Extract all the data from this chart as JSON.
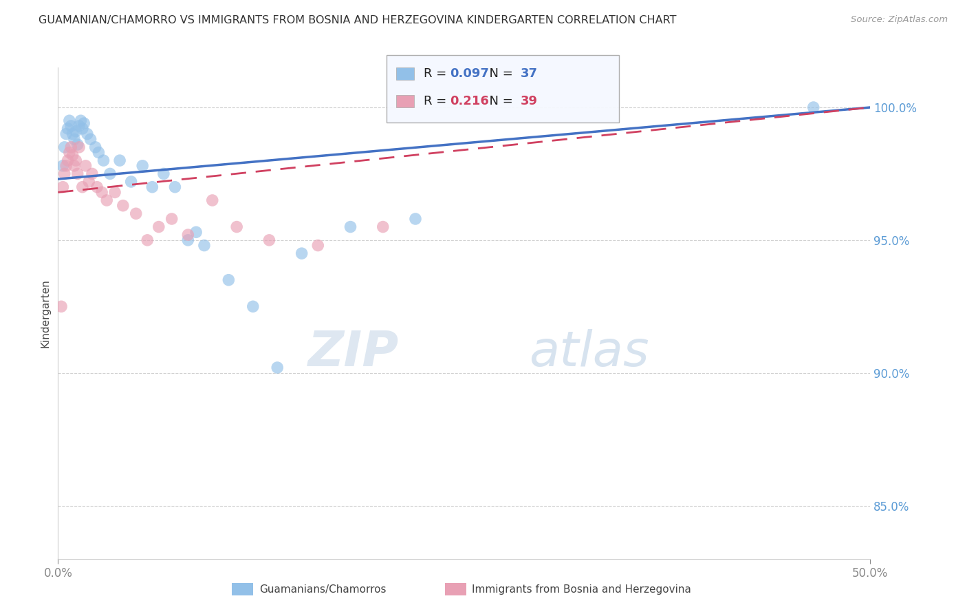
{
  "title": "GUAMANIAN/CHAMORRO VS IMMIGRANTS FROM BOSNIA AND HERZEGOVINA KINDERGARTEN CORRELATION CHART",
  "source": "Source: ZipAtlas.com",
  "ylabel": "Kindergarten",
  "x_lim": [
    0.0,
    50.0
  ],
  "y_lim": [
    83.0,
    101.5
  ],
  "blue_R": 0.097,
  "blue_N": 37,
  "pink_R": 0.216,
  "pink_N": 39,
  "blue_color": "#92C0E8",
  "pink_color": "#E8A0B4",
  "blue_line_color": "#4472C4",
  "pink_line_color": "#D04060",
  "legend_label_blue": "Guamanians/Chamorros",
  "legend_label_pink": "Immigrants from Bosnia and Herzegovina",
  "watermark_zip": "ZIP",
  "watermark_atlas": "atlas",
  "y_tick_positions": [
    85.0,
    90.0,
    95.0,
    100.0
  ],
  "y_tick_labels": [
    "85.0%",
    "90.0%",
    "95.0%",
    "100.0%"
  ],
  "blue_x": [
    0.3,
    0.4,
    0.5,
    0.6,
    0.7,
    0.8,
    0.9,
    1.0,
    1.1,
    1.2,
    1.3,
    1.4,
    1.5,
    1.6,
    1.8,
    2.0,
    2.3,
    2.5,
    2.8,
    3.2,
    3.8,
    4.5,
    5.2,
    5.8,
    6.5,
    7.2,
    8.0,
    8.5,
    9.0,
    10.5,
    12.0,
    13.5,
    15.0,
    18.0,
    22.0,
    46.5
  ],
  "blue_y": [
    97.8,
    98.5,
    99.0,
    99.2,
    99.5,
    99.3,
    99.0,
    98.8,
    99.1,
    98.6,
    99.3,
    99.5,
    99.2,
    99.4,
    99.0,
    98.8,
    98.5,
    98.3,
    98.0,
    97.5,
    98.0,
    97.2,
    97.8,
    97.0,
    97.5,
    97.0,
    95.0,
    95.3,
    94.8,
    93.5,
    92.5,
    90.2,
    94.5,
    95.5,
    95.8,
    100.0
  ],
  "pink_x": [
    0.2,
    0.3,
    0.4,
    0.5,
    0.6,
    0.7,
    0.8,
    0.9,
    1.0,
    1.1,
    1.2,
    1.3,
    1.5,
    1.7,
    1.9,
    2.1,
    2.4,
    2.7,
    3.0,
    3.5,
    4.0,
    4.8,
    5.5,
    6.2,
    7.0,
    8.0,
    9.5,
    11.0,
    13.0,
    16.0,
    20.0
  ],
  "pink_y": [
    92.5,
    97.0,
    97.5,
    97.8,
    98.0,
    98.3,
    98.5,
    98.2,
    97.8,
    98.0,
    97.5,
    98.5,
    97.0,
    97.8,
    97.2,
    97.5,
    97.0,
    96.8,
    96.5,
    96.8,
    96.3,
    96.0,
    95.0,
    95.5,
    95.8,
    95.2,
    96.5,
    95.5,
    95.0,
    94.8,
    95.5
  ]
}
